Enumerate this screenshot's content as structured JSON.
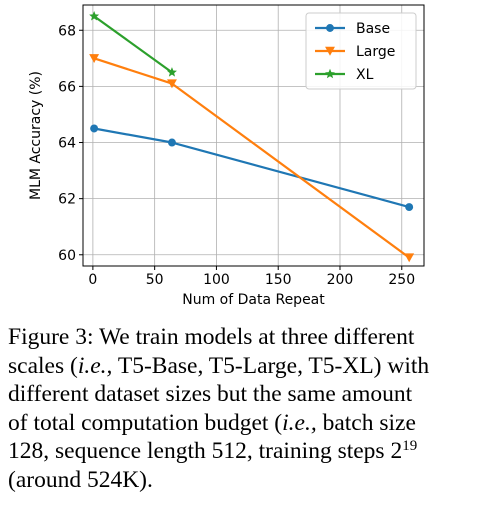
{
  "chart_data": {
    "type": "line",
    "xlabel": "Num of Data Repeat",
    "ylabel": "MLM Accuracy (%)",
    "xlim": [
      -8,
      268
    ],
    "ylim": [
      59.6,
      68.9
    ],
    "xticks": [
      0,
      50,
      100,
      150,
      200,
      250
    ],
    "yticks": [
      60,
      62,
      64,
      66,
      68
    ],
    "grid": true,
    "legend_position": "top-right",
    "series": [
      {
        "name": "Base",
        "color": "#1f77b4",
        "marker": "circle",
        "x": [
          1,
          64,
          256
        ],
        "y": [
          64.5,
          64.0,
          61.7
        ]
      },
      {
        "name": "Large",
        "color": "#ff7f0e",
        "marker": "triangle-down",
        "x": [
          1,
          64,
          256
        ],
        "y": [
          67.0,
          66.1,
          59.9
        ]
      },
      {
        "name": "XL",
        "color": "#2ca02c",
        "marker": "star",
        "x": [
          1,
          64
        ],
        "y": [
          68.5,
          66.5
        ]
      }
    ]
  },
  "caption": {
    "lines": [
      [
        {
          "t": "Figure 3: We train models at three different"
        }
      ],
      [
        {
          "t": "scales ("
        },
        {
          "t": "i.e.,",
          "i": true
        },
        {
          "t": " T5-Base, T5-Large, T5-XL) with"
        }
      ],
      [
        {
          "t": "different dataset sizes but the same amount"
        }
      ],
      [
        {
          "t": "of total computation budget ("
        },
        {
          "t": "i.e.,",
          "i": true
        },
        {
          "t": " batch size"
        }
      ],
      [
        {
          "t": "128, sequence length 512, training steps 2"
        },
        {
          "t": "19",
          "sup": true
        }
      ],
      [
        {
          "t": "(around 524K)."
        }
      ]
    ]
  }
}
